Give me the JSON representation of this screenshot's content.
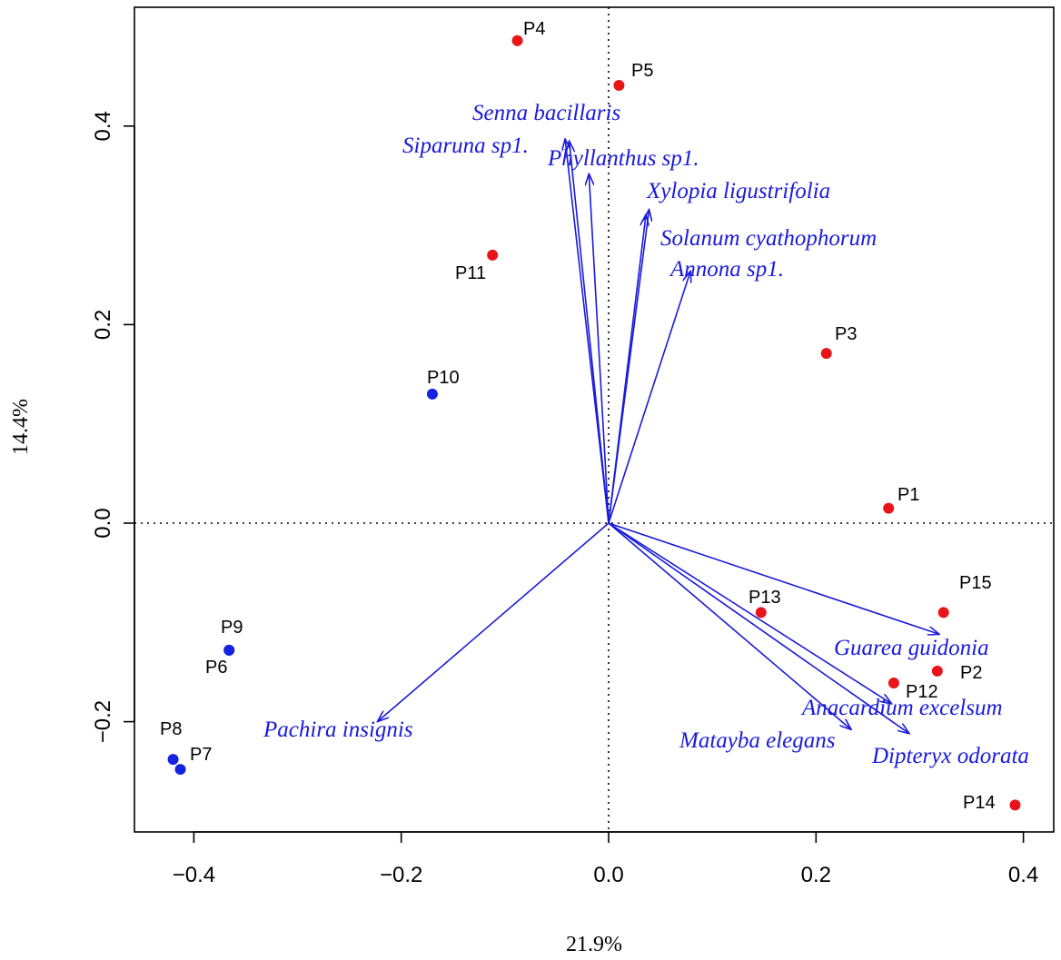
{
  "chart_data": {
    "type": "scatter",
    "xlabel": "21.9%",
    "ylabel": "14.4%",
    "xlim": [
      -0.45,
      0.42
    ],
    "ylim": [
      -0.315,
      0.515
    ],
    "xticks": [
      "−0.4",
      "−0.2",
      "0.0",
      "0.2",
      "0.4"
    ],
    "yticks": [
      "−0.2",
      "0.0",
      "0.2",
      "0.4"
    ],
    "reference_lines": "dotted at x = 0 and y = 0",
    "point_colors": {
      "red": "#e8141a",
      "blue": "#1522e0"
    },
    "arrow_color": "#1a1adb",
    "points": [
      {
        "label": "P1",
        "x": 0.27,
        "y": 0.015,
        "color": "red"
      },
      {
        "label": "P2",
        "x": 0.317,
        "y": -0.149,
        "color": "red"
      },
      {
        "label": "P3",
        "x": 0.21,
        "y": 0.171,
        "color": "red"
      },
      {
        "label": "P4",
        "x": -0.088,
        "y": 0.486,
        "color": "red"
      },
      {
        "label": "P5",
        "x": 0.01,
        "y": 0.441,
        "color": "red"
      },
      {
        "label": "P6",
        "x": -0.366,
        "y": -0.128,
        "color": "blue"
      },
      {
        "label": "P7",
        "x": -0.413,
        "y": -0.248,
        "color": "blue"
      },
      {
        "label": "P8",
        "x": -0.42,
        "y": -0.238,
        "color": "blue"
      },
      {
        "label": "P9",
        "x": -0.366,
        "y": -0.128,
        "color": "blue"
      },
      {
        "label": "P10",
        "x": -0.17,
        "y": 0.13,
        "color": "blue"
      },
      {
        "label": "P11",
        "x": -0.112,
        "y": 0.27,
        "color": "red"
      },
      {
        "label": "P12",
        "x": 0.275,
        "y": -0.161,
        "color": "red"
      },
      {
        "label": "P13",
        "x": 0.147,
        "y": -0.09,
        "color": "red"
      },
      {
        "label": "P14",
        "x": 0.392,
        "y": -0.284,
        "color": "red"
      },
      {
        "label": "P15",
        "x": 0.323,
        "y": -0.09,
        "color": "red"
      }
    ],
    "vectors": [
      {
        "label": "Senna bacillaris",
        "x": -0.042,
        "y": 0.387
      },
      {
        "label": "Siparuna sp1.",
        "x": -0.038,
        "y": 0.385
      },
      {
        "label": "Phyllanthus sp1.",
        "x": -0.019,
        "y": 0.352
      },
      {
        "label": "Xylopia ligustrifolia",
        "x": 0.039,
        "y": 0.316
      },
      {
        "label": "Solanum cyathophorum",
        "x": 0.036,
        "y": 0.311
      },
      {
        "label": "Annona sp1.",
        "x": 0.079,
        "y": 0.254
      },
      {
        "label": "Guarea guidonia",
        "x": 0.319,
        "y": -0.112
      },
      {
        "label": "Anacardium excelsum",
        "x": 0.273,
        "y": -0.182
      },
      {
        "label": "Dipteryx odorata",
        "x": 0.29,
        "y": -0.212
      },
      {
        "label": "Matayba elegans",
        "x": 0.234,
        "y": -0.208
      },
      {
        "label": "Pachira insignis",
        "x": -0.223,
        "y": -0.2
      }
    ]
  }
}
